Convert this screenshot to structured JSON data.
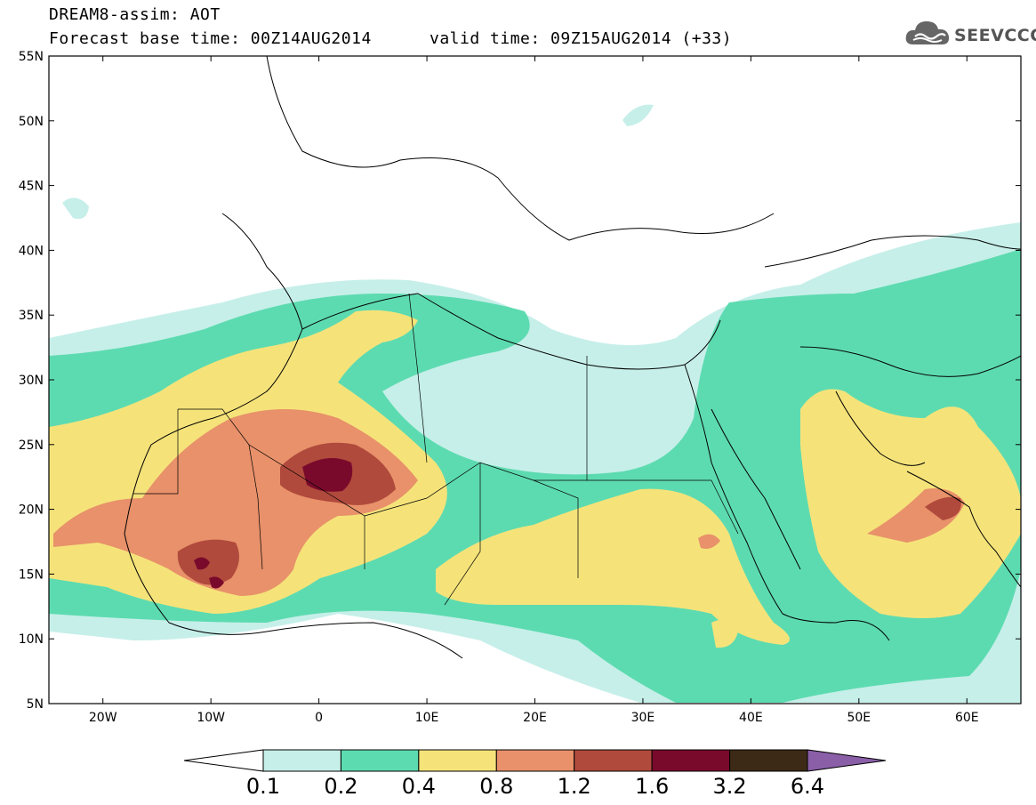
{
  "title": {
    "line1": "DREAM8-assim: AOT",
    "line2_base": "Forecast base time: 00Z14AUG2014",
    "line2_valid": "valid time: 09Z15AUG2014 (+33)"
  },
  "logo": {
    "text": "SEEVCCC",
    "icon": "cloud-icon"
  },
  "map": {
    "lon_range": [
      -25,
      65
    ],
    "lat_range": [
      5,
      55
    ],
    "lat_ticks": [
      {
        "value": 55,
        "label": "55N"
      },
      {
        "value": 50,
        "label": "50N"
      },
      {
        "value": 45,
        "label": "45N"
      },
      {
        "value": 40,
        "label": "40N"
      },
      {
        "value": 35,
        "label": "35N"
      },
      {
        "value": 30,
        "label": "30N"
      },
      {
        "value": 25,
        "label": "25N"
      },
      {
        "value": 20,
        "label": "20N"
      },
      {
        "value": 15,
        "label": "15N"
      },
      {
        "value": 10,
        "label": "10N"
      },
      {
        "value": 5,
        "label": "5N"
      }
    ],
    "lon_ticks": [
      {
        "value": -20,
        "label": "20W"
      },
      {
        "value": -10,
        "label": "10W"
      },
      {
        "value": 0,
        "label": "0"
      },
      {
        "value": 10,
        "label": "10E"
      },
      {
        "value": 20,
        "label": "20E"
      },
      {
        "value": 30,
        "label": "30E"
      },
      {
        "value": 40,
        "label": "40E"
      },
      {
        "value": 50,
        "label": "50E"
      },
      {
        "value": 60,
        "label": "60E"
      }
    ]
  },
  "colorbar": {
    "levels": [
      "0.1",
      "0.2",
      "0.4",
      "0.8",
      "1.2",
      "1.6",
      "3.2",
      "6.4"
    ],
    "colors": [
      "#c6efe9",
      "#5ddbb0",
      "#f5e37a",
      "#e8916a",
      "#b04a3c",
      "#7a0a2c",
      "#3d2a16"
    ],
    "under_color": "#ffffff",
    "over_color": "#8a5fa8"
  },
  "colors": {
    "c1": "#c6efe9",
    "c2": "#5ddbb0",
    "c3": "#f5e37a",
    "c4": "#e8916a",
    "c5": "#b04a3c",
    "c6": "#7a0a2c",
    "border": "#000000"
  }
}
